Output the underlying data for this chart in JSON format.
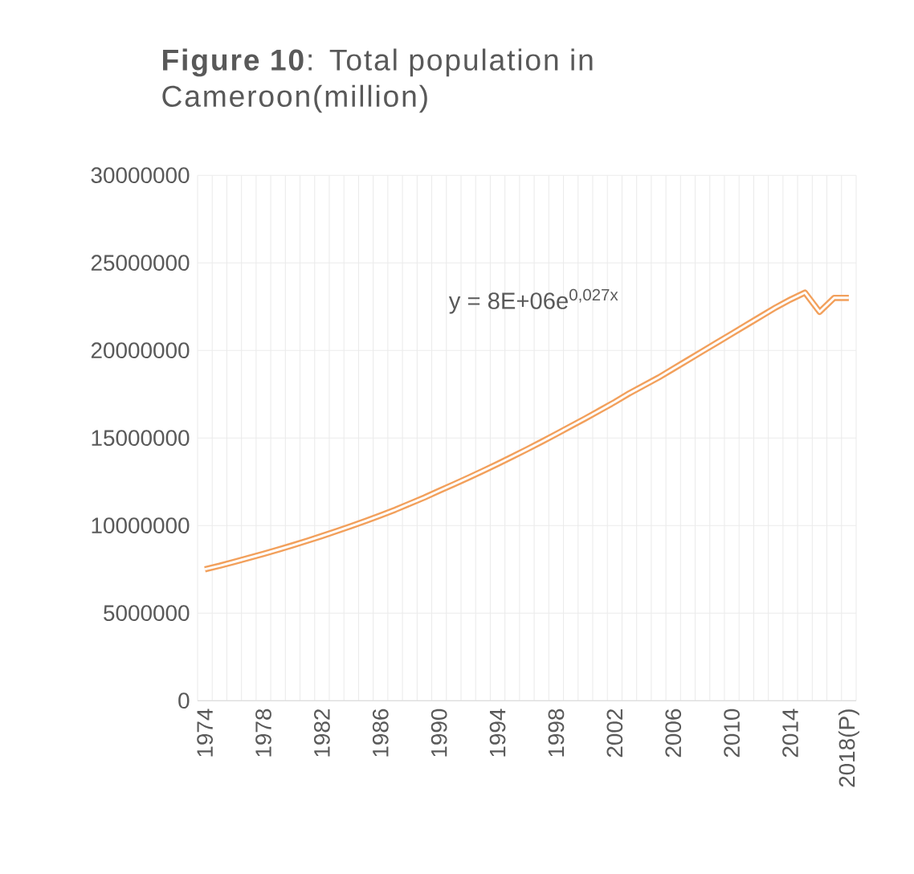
{
  "chart_data": {
    "type": "line",
    "title": "**Figure 10**: Total population in Cameroon(million)",
    "annotations": [
      "y = 8E+06e$^{0,027x}$"
    ],
    "categories": [
      "1974",
      null,
      null,
      null,
      "1978",
      null,
      null,
      null,
      "1982",
      null,
      null,
      null,
      "1986",
      null,
      null,
      null,
      "1990",
      null,
      null,
      null,
      "1994",
      null,
      null,
      null,
      "1998",
      null,
      null,
      null,
      "2002",
      null,
      null,
      null,
      "2006",
      null,
      null,
      null,
      "2010",
      null,
      null,
      null,
      "2014",
      null,
      null,
      null,
      "2018(P)"
    ],
    "values": [
      7500000,
      7700000,
      7920000,
      8150000,
      8380000,
      8620000,
      8870000,
      9130000,
      9400000,
      9680000,
      9970000,
      10270000,
      10580000,
      10900000,
      11250000,
      11600000,
      11980000,
      12350000,
      12730000,
      13120000,
      13520000,
      13930000,
      14350000,
      14780000,
      15220000,
      15670000,
      16120000,
      16580000,
      17050000,
      17550000,
      18000000,
      18450000,
      18950000,
      19450000,
      19950000,
      20450000,
      20950000,
      21450000,
      21950000,
      22450000,
      22900000,
      23300000,
      22200000,
      23000000,
      23000000
    ],
    "color": "#f2a05c",
    "ylim": [
      0,
      30000000
    ],
    "yticks": [
      0,
      5000000,
      10000000,
      15000000,
      20000000,
      25000000,
      30000000
    ],
    "grid": true
  }
}
